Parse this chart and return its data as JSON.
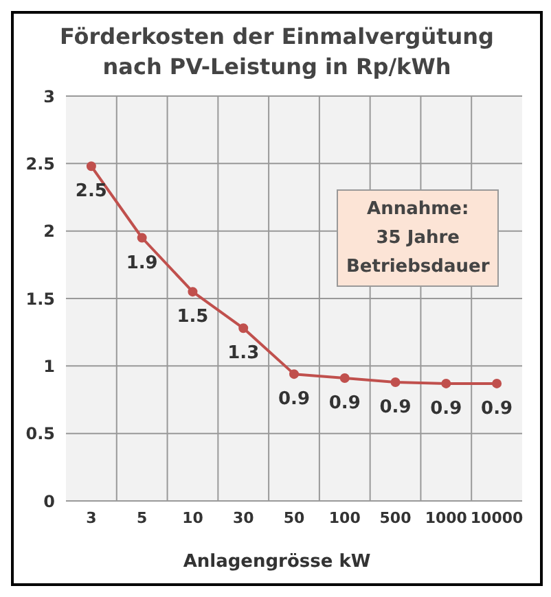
{
  "chart_data": {
    "type": "line",
    "title": "Förderkosten der Einmalvergütung\nnach PV-Leistung in Rp/kWh",
    "xlabel": "Anlagengrösse kW",
    "categories": [
      "3",
      "5",
      "10",
      "30",
      "50",
      "100",
      "500",
      "1000",
      "10000"
    ],
    "series": [
      {
        "color": "#c0504d",
        "values": [
          2.48,
          1.95,
          1.55,
          1.28,
          0.94,
          0.91,
          0.88,
          0.87,
          0.87
        ],
        "value_labels": [
          "2.5",
          "1.9",
          "1.5",
          "1.3",
          "0.9",
          "0.9",
          "0.9",
          "0.9",
          "0.9"
        ]
      }
    ],
    "ylim": [
      0,
      3
    ],
    "yticks": [
      0,
      0.5,
      1,
      1.5,
      2,
      2.5,
      3
    ],
    "grid": true,
    "marker": "circle",
    "line_style": "solid",
    "annotations": [
      "Annahme:\n35 Jahre\nBetriebsdauer"
    ]
  }
}
